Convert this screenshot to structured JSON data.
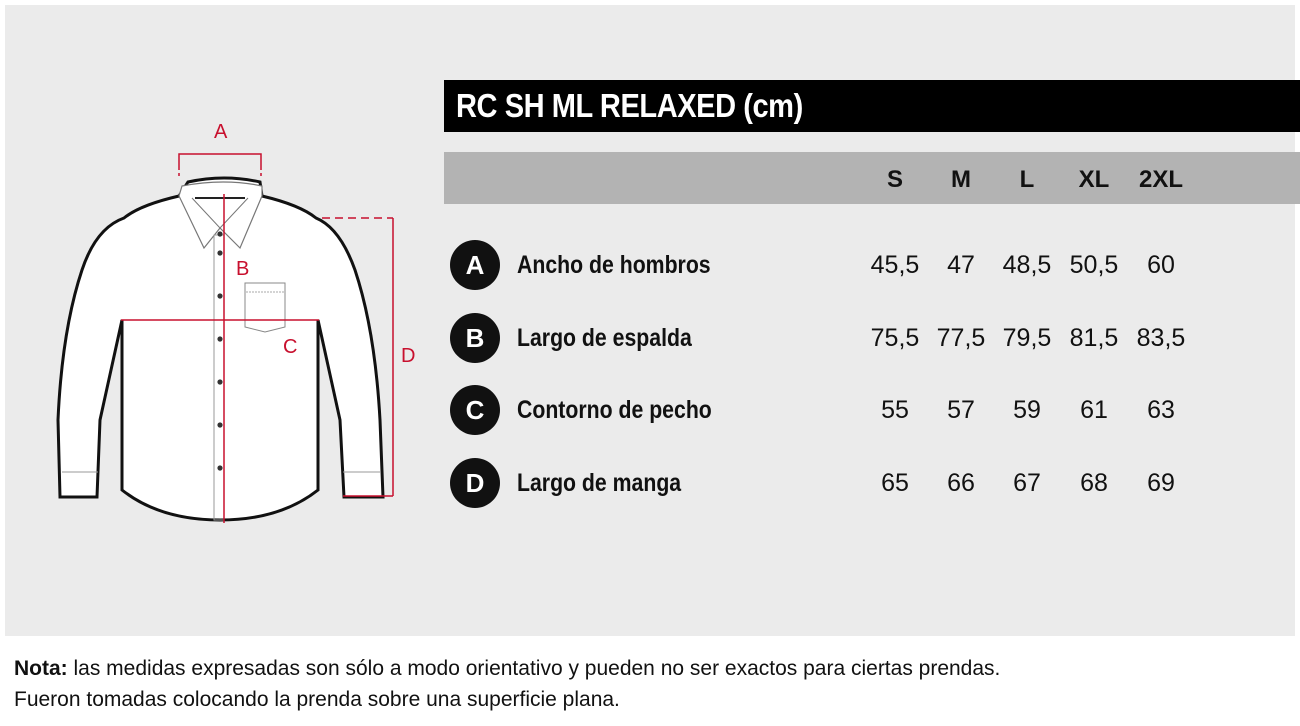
{
  "title": "RC SH ML RELAXED (cm)",
  "sizes": [
    "S",
    "M",
    "L",
    "XL",
    "2XL"
  ],
  "rows": [
    {
      "key": "A",
      "label": "Ancho de hombros",
      "values": [
        "45,5",
        "47",
        "48,5",
        "50,5",
        "60"
      ]
    },
    {
      "key": "B",
      "label": "Largo de espalda",
      "values": [
        "75,5",
        "77,5",
        "79,5",
        "81,5",
        "83,5"
      ]
    },
    {
      "key": "C",
      "label": "Contorno de pecho",
      "values": [
        "55",
        "57",
        "59",
        "61",
        "63"
      ]
    },
    {
      "key": "D",
      "label": "Largo de manga",
      "values": [
        "65",
        "66",
        "67",
        "68",
        "69"
      ]
    }
  ],
  "diagram": {
    "labels": [
      "A",
      "B",
      "C",
      "D"
    ],
    "accent": "#c8102e"
  },
  "note": {
    "prefix": "Nota:",
    "line1": " las medidas expresadas son sólo a modo orientativo y pueden no ser exactos para ciertas prendas.",
    "line2": "Fueron tomadas colocando la prenda sobre una superficie plana."
  }
}
